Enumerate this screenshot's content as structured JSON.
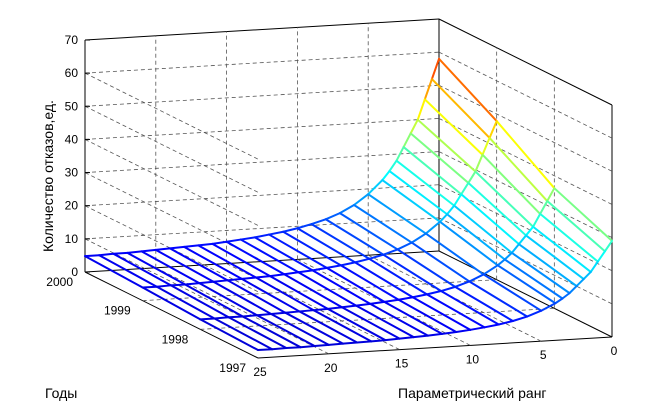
{
  "chart_data": {
    "type": "surface-3d-mesh",
    "title": "",
    "xlabel": "Параметрический ранг",
    "ylabel": "Годы",
    "zlabel": "Количество отказов,ед.",
    "x_ticks": [
      "0",
      "5",
      "10",
      "15",
      "20",
      "25"
    ],
    "y_ticks": [
      "1997",
      "1998",
      "1999",
      "2000"
    ],
    "z_ticks": [
      "0",
      "10",
      "20",
      "30",
      "40",
      "50",
      "60",
      "70"
    ],
    "xlim": [
      0,
      25
    ],
    "ylim": [
      1997,
      2000
    ],
    "zlim": [
      0,
      70
    ],
    "grid": true,
    "colormap": "jet",
    "surface": {
      "rank": [
        0,
        0.5,
        1,
        1.5,
        2,
        2.5,
        3,
        3.5,
        4,
        5,
        6,
        7,
        8,
        9,
        10,
        11,
        12,
        13,
        14,
        15,
        16,
        17,
        18,
        19,
        20,
        21,
        22,
        23,
        24,
        25
      ],
      "years": [
        1997,
        1998,
        1999,
        2000
      ],
      "curve_at_1997": [
        29,
        26,
        23,
        20,
        18,
        16,
        14,
        12.5,
        11.2,
        9.2,
        7.7,
        6.6,
        5.8,
        5.2,
        4.7,
        4.3,
        4.0,
        3.7,
        3.5,
        3.3,
        3.1,
        3.0,
        2.9,
        2.8,
        2.7,
        2.6,
        2.5,
        2.5,
        2.4,
        2.4
      ],
      "year_scale": [
        1.0,
        1.25,
        1.65,
        2.0
      ]
    }
  }
}
